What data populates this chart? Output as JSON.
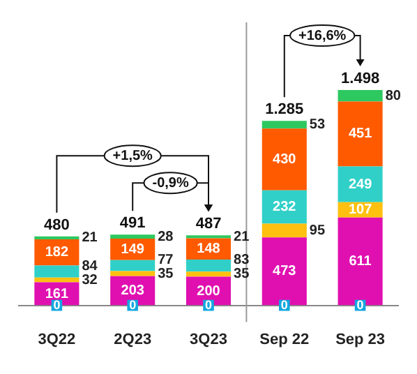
{
  "chart_data": {
    "type": "bar",
    "stacked": true,
    "data_labels": true,
    "categories": [
      "3Q22",
      "2Q23",
      "3Q23",
      "Sep 22",
      "Sep 23"
    ],
    "series": [
      {
        "type": "scatter",
        "marker": "square",
        "color": "#12a8e0",
        "x": [
          "3Q22",
          "2Q23",
          "3Q23",
          "Sep 22",
          "Sep 23"
        ],
        "values": [
          0,
          0,
          0,
          0,
          0
        ]
      },
      {
        "color": "#e010b0",
        "values": [
          161,
          203,
          200,
          473,
          611
        ]
      },
      {
        "color": "#ffc010",
        "values": [
          32,
          35,
          35,
          95,
          107
        ]
      },
      {
        "color": "#30d0c8",
        "values": [
          84,
          77,
          83,
          232,
          249
        ]
      },
      {
        "color": "#ff5a00",
        "values": [
          182,
          149,
          148,
          430,
          451
        ]
      },
      {
        "color": "#2ec860",
        "values": [
          21,
          28,
          21,
          53,
          80
        ]
      }
    ],
    "totals": [
      "480",
      "491",
      "487",
      "1.285",
      "1.498"
    ],
    "annotations": [
      "+1,5%",
      "-0,9%",
      "+16,6%"
    ]
  }
}
